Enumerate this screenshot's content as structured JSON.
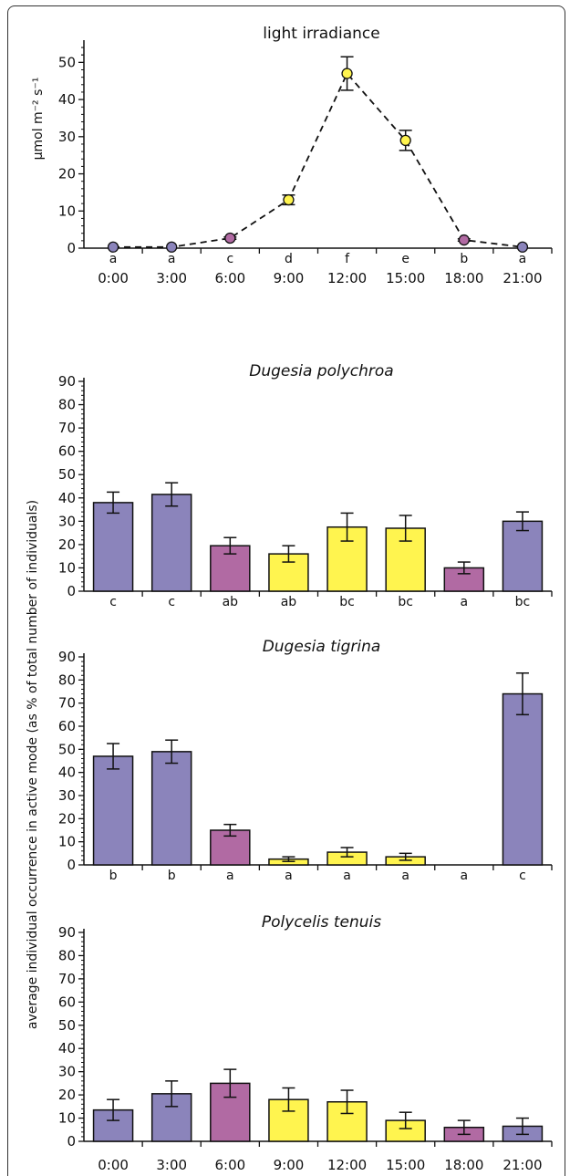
{
  "colors": {
    "night": "#8b84bb",
    "twilight": "#b16aa3",
    "day": "#fff44f"
  },
  "y_axis_label": "average individual occurrence in active mode (as % of total number of individuals)",
  "x_tick_labels": [
    "0:00",
    "3:00",
    "6:00",
    "9:00",
    "12:00",
    "15:00",
    "18:00",
    "21:00"
  ],
  "chart_data": [
    {
      "type": "line",
      "title": "light irradiance",
      "ylabel": "μmol m⁻² s⁻¹",
      "ylim": [
        0,
        55
      ],
      "yticks": [
        0,
        10,
        20,
        30,
        40,
        50
      ],
      "categories": [
        "0:00",
        "3:00",
        "6:00",
        "9:00",
        "12:00",
        "15:00",
        "18:00",
        "21:00"
      ],
      "values": [
        0.3,
        0.3,
        2.7,
        13,
        47,
        29,
        2.2,
        0.3
      ],
      "errors": [
        0,
        0,
        0.3,
        1.3,
        4.5,
        2.7,
        0.3,
        0
      ],
      "letters": [
        "a",
        "a",
        "c",
        "d",
        "f",
        "e",
        "b",
        "a"
      ],
      "marker_colors": [
        "night",
        "night",
        "twilight",
        "day",
        "day",
        "day",
        "twilight",
        "night"
      ],
      "line_style": "dashed"
    },
    {
      "type": "bar",
      "title": "Dugesia polychroa",
      "ylim": [
        0,
        90
      ],
      "yticks": [
        0,
        10,
        20,
        30,
        40,
        50,
        60,
        70,
        80,
        90
      ],
      "categories": [
        "0:00",
        "3:00",
        "6:00",
        "9:00",
        "12:00",
        "15:00",
        "18:00",
        "21:00"
      ],
      "values": [
        38,
        41.5,
        19.5,
        16,
        27.5,
        27,
        10,
        30
      ],
      "errors": [
        4.5,
        5,
        3.5,
        3.5,
        6,
        5.5,
        2.5,
        4
      ],
      "letters": [
        "c",
        "c",
        "ab",
        "ab",
        "bc",
        "bc",
        "a",
        "bc"
      ],
      "bar_colors": [
        "night",
        "night",
        "twilight",
        "day",
        "day",
        "day",
        "twilight",
        "night"
      ]
    },
    {
      "type": "bar",
      "title": "Dugesia tigrina",
      "ylim": [
        0,
        90
      ],
      "yticks": [
        0,
        10,
        20,
        30,
        40,
        50,
        60,
        70,
        80,
        90
      ],
      "categories": [
        "0:00",
        "3:00",
        "6:00",
        "9:00",
        "12:00",
        "15:00",
        "18:00",
        "21:00"
      ],
      "values": [
        47,
        49,
        15,
        2.5,
        5.5,
        3.5,
        0,
        74
      ],
      "errors": [
        5.5,
        5,
        2.5,
        1,
        2,
        1.5,
        0,
        9
      ],
      "letters": [
        "b",
        "b",
        "a",
        "a",
        "a",
        "a",
        "a",
        "c"
      ],
      "bar_colors": [
        "night",
        "night",
        "twilight",
        "day",
        "day",
        "day",
        "twilight",
        "night"
      ]
    },
    {
      "type": "bar",
      "title": "Polycelis tenuis",
      "ylim": [
        0,
        90
      ],
      "yticks": [
        0,
        10,
        20,
        30,
        40,
        50,
        60,
        70,
        80,
        90
      ],
      "categories": [
        "0:00",
        "3:00",
        "6:00",
        "9:00",
        "12:00",
        "15:00",
        "18:00",
        "21:00"
      ],
      "values": [
        13.5,
        20.5,
        25,
        18,
        17,
        9,
        6,
        6.5
      ],
      "errors": [
        4.5,
        5.5,
        6,
        5,
        5,
        3.5,
        3,
        3.5
      ],
      "letters": [],
      "bar_colors": [
        "night",
        "night",
        "twilight",
        "day",
        "day",
        "day",
        "twilight",
        "night"
      ]
    }
  ]
}
